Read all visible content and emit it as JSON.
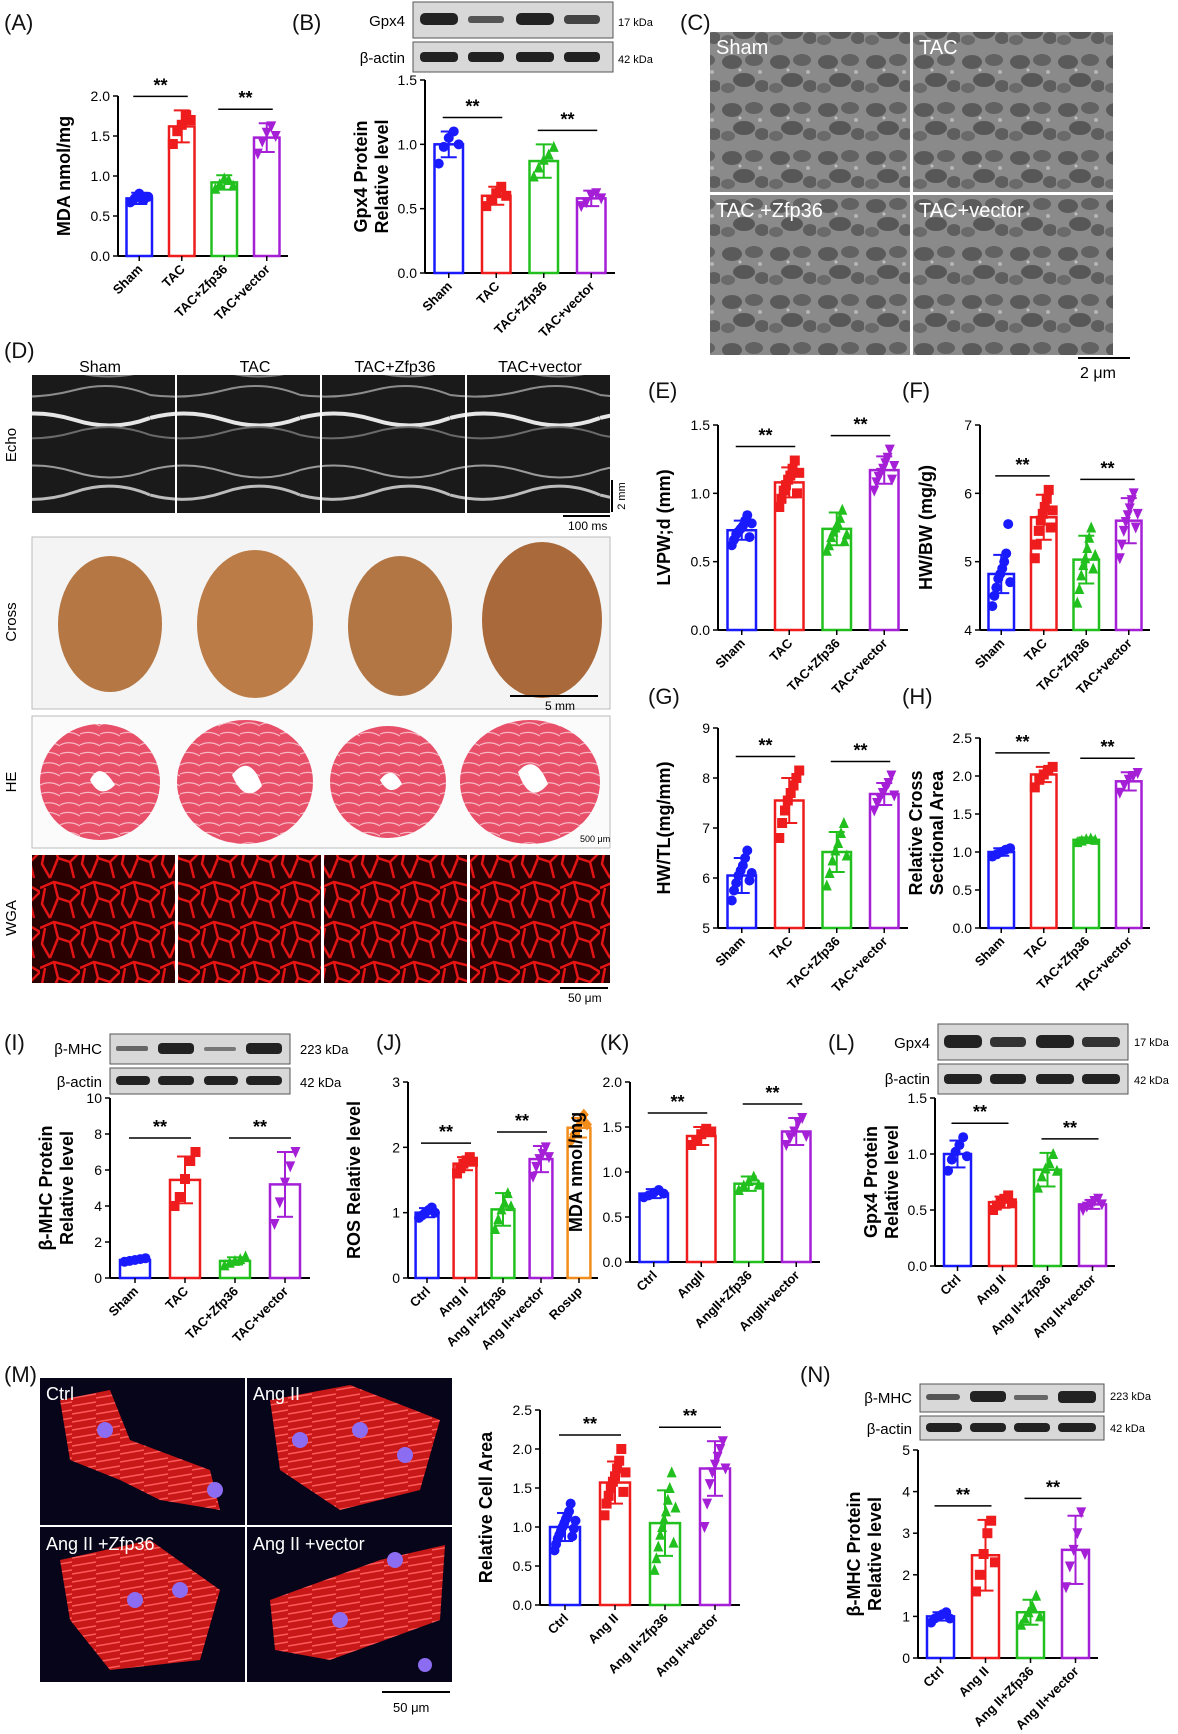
{
  "colors": {
    "Sham": "#1a1aff",
    "TAC": "#ee1c1c",
    "Zfp": "#22c01f",
    "vec": "#a41fd6",
    "Rosup": "#f28c1b"
  },
  "panels": {
    "A": {
      "label": "(A)"
    },
    "B": {
      "label": "(B)"
    },
    "C": {
      "label": "(C)"
    },
    "D": {
      "label": "(D)"
    },
    "E": {
      "label": "(E)"
    },
    "F": {
      "label": "(F)"
    },
    "G": {
      "label": "(G)"
    },
    "H": {
      "label": "(H)"
    },
    "I": {
      "label": "(I)"
    },
    "J": {
      "label": "(J)"
    },
    "K": {
      "label": "(K)"
    },
    "L": {
      "label": "(L)"
    },
    "M": {
      "label": "(M)"
    },
    "N": {
      "label": "(N)"
    }
  },
  "images": {
    "C": {
      "labels": [
        "Sham",
        "TAC",
        "TAC +Zfp36",
        "TAC+vector"
      ],
      "scale": "2 μm"
    },
    "D": {
      "groups": [
        "Sham",
        "TAC",
        "TAC+Zfp36",
        "TAC+vector"
      ],
      "row_labels": [
        "Echo",
        "Cross",
        "HE",
        "WGA"
      ],
      "echo_scale_v": "2 mm",
      "echo_scale_h": "100 ms",
      "cross_scale": "5 mm",
      "he_scale": "500 μm",
      "wga_scale": "50 μm"
    },
    "M": {
      "labels": [
        "Ctrl",
        "Ang II",
        "Ang II +Zfp36",
        "Ang II +vector"
      ],
      "scale": "50 μm"
    }
  },
  "blots": {
    "B": {
      "rows": [
        "Gpx4",
        "β-actin"
      ],
      "kda": [
        "17 kDa",
        "42 kDa"
      ]
    },
    "I": {
      "rows": [
        "β-MHC",
        "β-actin"
      ],
      "kda": [
        "223 kDa",
        "42 kDa"
      ]
    },
    "L": {
      "rows": [
        "Gpx4",
        "β-actin"
      ],
      "kda": [
        "17 kDa",
        "42 kDa"
      ]
    },
    "N": {
      "rows": [
        "β-MHC",
        "β-actin"
      ],
      "kda": [
        "223 kDa",
        "42 kDa"
      ]
    }
  },
  "chart_data": [
    {
      "id": "A",
      "type": "bar",
      "ylabel": "MDA nmol/mg",
      "ylim": [
        0,
        2.0
      ],
      "yticks": [
        "0.0",
        "0.5",
        "1.0",
        "1.5",
        "2.0"
      ],
      "categories": [
        "Sham",
        "TAC",
        "TAC+Zfp36",
        "TAC+vector"
      ],
      "colors": [
        "Sham",
        "TAC",
        "Zfp",
        "vec"
      ],
      "values": [
        0.72,
        1.62,
        0.92,
        1.48
      ],
      "errors": [
        0.07,
        0.2,
        0.09,
        0.18
      ],
      "points": [
        [
          0.67,
          0.72,
          0.78,
          0.7,
          0.74
        ],
        [
          1.4,
          1.56,
          1.64,
          1.76,
          1.7
        ],
        [
          0.84,
          0.9,
          0.97,
          0.95,
          0.88
        ],
        [
          1.28,
          1.43,
          1.54,
          1.62,
          1.5
        ]
      ],
      "markers": [
        "circle",
        "square",
        "triangle",
        "down"
      ],
      "sig": [
        [
          0,
          1,
          "**"
        ],
        [
          2,
          3,
          "**"
        ]
      ]
    },
    {
      "id": "B",
      "type": "bar",
      "ylabel": "Gpx4 Protein\nRelative level",
      "ylim": [
        0,
        1.5
      ],
      "yticks": [
        "0.0",
        "0.5",
        "1.0",
        "1.5"
      ],
      "categories": [
        "Sham",
        "TAC",
        "TAC+Zfp36",
        "TAC+vector"
      ],
      "colors": [
        "Sham",
        "TAC",
        "Zfp",
        "vec"
      ],
      "values": [
        1.0,
        0.6,
        0.87,
        0.58
      ],
      "errors": [
        0.1,
        0.07,
        0.13,
        0.06
      ],
      "points": [
        [
          0.85,
          0.98,
          1.05,
          1.1,
          1.0
        ],
        [
          0.52,
          0.57,
          0.62,
          0.67,
          0.6
        ],
        [
          0.75,
          0.82,
          0.88,
          0.92,
          0.98
        ],
        [
          0.52,
          0.55,
          0.6,
          0.62,
          0.58
        ]
      ],
      "markers": [
        "circle",
        "square",
        "triangle",
        "down"
      ],
      "sig": [
        [
          0,
          1,
          "**"
        ],
        [
          2,
          3,
          "**"
        ]
      ]
    },
    {
      "id": "E",
      "type": "bar",
      "ylabel": "LVPW;d (mm)",
      "ylim": [
        0,
        1.5
      ],
      "yticks": [
        "0.0",
        "0.5",
        "1.0",
        "1.5"
      ],
      "categories": [
        "Sham",
        "TAC",
        "TAC+Zfp36",
        "TAC+vector"
      ],
      "colors": [
        "Sham",
        "TAC",
        "Zfp",
        "vec"
      ],
      "values": [
        0.73,
        1.08,
        0.74,
        1.17
      ],
      "errors": [
        0.07,
        0.11,
        0.12,
        0.1
      ],
      "points": [
        [
          0.62,
          0.66,
          0.7,
          0.72,
          0.74,
          0.76,
          0.8,
          0.84,
          0.68,
          0.78
        ],
        [
          0.9,
          0.96,
          1.02,
          1.06,
          1.1,
          1.13,
          1.18,
          1.24,
          1.0,
          1.15
        ],
        [
          0.58,
          0.62,
          0.68,
          0.72,
          0.75,
          0.78,
          0.82,
          0.88,
          0.65,
          0.7
        ],
        [
          1.02,
          1.08,
          1.12,
          1.15,
          1.18,
          1.22,
          1.26,
          1.32,
          1.1,
          1.2
        ]
      ],
      "markers": [
        "circle",
        "square",
        "triangle",
        "down"
      ],
      "sig": [
        [
          0,
          1,
          "**"
        ],
        [
          2,
          3,
          "**"
        ]
      ]
    },
    {
      "id": "F",
      "type": "bar",
      "ylabel": "HW/BW (mg/g)",
      "ylim": [
        4,
        7
      ],
      "yticks": [
        "4",
        "5",
        "6",
        "7"
      ],
      "categories": [
        "Sham",
        "TAC",
        "TAC+Zfp36",
        "TAC+vector"
      ],
      "colors": [
        "Sham",
        "TAC",
        "Zfp",
        "vec"
      ],
      "values": [
        4.82,
        5.65,
        5.03,
        5.6
      ],
      "errors": [
        0.28,
        0.33,
        0.35,
        0.33
      ],
      "points": [
        [
          4.35,
          4.5,
          4.62,
          4.75,
          4.82,
          4.9,
          5.0,
          5.12,
          5.55,
          4.7
        ],
        [
          5.05,
          5.25,
          5.45,
          5.6,
          5.7,
          5.8,
          5.92,
          6.05,
          5.5,
          5.75
        ],
        [
          4.4,
          4.6,
          4.8,
          4.95,
          5.05,
          5.2,
          5.35,
          5.5,
          4.9,
          5.1
        ],
        [
          5.05,
          5.25,
          5.45,
          5.58,
          5.68,
          5.78,
          5.9,
          6.0,
          5.5,
          5.7
        ]
      ],
      "markers": [
        "circle",
        "square",
        "triangle",
        "down"
      ],
      "sig": [
        [
          0,
          1,
          "**"
        ],
        [
          2,
          3,
          "**"
        ]
      ]
    },
    {
      "id": "G",
      "type": "bar",
      "ylabel": "HW/TL(mg/mm)",
      "ylim": [
        5,
        9
      ],
      "yticks": [
        "5",
        "6",
        "7",
        "8",
        "9"
      ],
      "categories": [
        "Sham",
        "TAC",
        "TAC+Zfp36",
        "TAC+vector"
      ],
      "colors": [
        "Sham",
        "TAC",
        "Zfp",
        "vec"
      ],
      "values": [
        6.05,
        7.55,
        6.52,
        7.68
      ],
      "errors": [
        0.35,
        0.45,
        0.4,
        0.22
      ],
      "points": [
        [
          5.55,
          5.75,
          5.9,
          6.05,
          6.15,
          6.25,
          6.4,
          6.55,
          5.95,
          6.1
        ],
        [
          6.8,
          7.1,
          7.35,
          7.55,
          7.7,
          7.85,
          8.0,
          8.15
        ],
        [
          5.85,
          6.1,
          6.35,
          6.55,
          6.7,
          6.9,
          7.1,
          6.45
        ],
        [
          7.35,
          7.5,
          7.6,
          7.7,
          7.8,
          7.9,
          8.05,
          7.65
        ]
      ],
      "markers": [
        "circle",
        "square",
        "triangle",
        "down"
      ],
      "sig": [
        [
          0,
          1,
          "**"
        ],
        [
          2,
          3,
          "**"
        ]
      ]
    },
    {
      "id": "H",
      "type": "bar",
      "ylabel": "Relative Cross\nSectional Area",
      "ylim": [
        0,
        2.5
      ],
      "yticks": [
        "0.0",
        "0.5",
        "1.0",
        "1.5",
        "2.0",
        "2.5"
      ],
      "categories": [
        "Sham",
        "TAC",
        "TAC+Zfp36",
        "TAC+vector"
      ],
      "colors": [
        "Sham",
        "TAC",
        "Zfp",
        "vec"
      ],
      "values": [
        1.0,
        2.02,
        1.16,
        1.93
      ],
      "errors": [
        0.05,
        0.1,
        0.03,
        0.12
      ],
      "points": [
        [
          0.94,
          0.97,
          1.0,
          1.03,
          1.05
        ],
        [
          1.85,
          1.95,
          2.02,
          2.08,
          2.12
        ],
        [
          1.13,
          1.15,
          1.17,
          1.18,
          1.16
        ],
        [
          1.78,
          1.88,
          1.95,
          2.0,
          2.04
        ]
      ],
      "markers": [
        "circle",
        "square",
        "triangle",
        "down"
      ],
      "sig": [
        [
          0,
          1,
          "**"
        ],
        [
          2,
          3,
          "**"
        ]
      ]
    },
    {
      "id": "I",
      "type": "bar",
      "ylabel": "β-MHC Protein\nRelative level",
      "ylim": [
        0,
        10
      ],
      "yticks": [
        "0",
        "2",
        "4",
        "6",
        "8",
        "10"
      ],
      "categories": [
        "Sham",
        "TAC",
        "TAC+Zfp36",
        "TAC+vector"
      ],
      "colors": [
        "Sham",
        "TAC",
        "Zfp",
        "vec"
      ],
      "values": [
        1.0,
        5.45,
        0.95,
        5.2
      ],
      "errors": [
        0.1,
        1.3,
        0.2,
        1.8
      ],
      "points": [
        [
          0.9,
          0.95,
          1.0,
          1.05,
          1.1
        ],
        [
          4.0,
          4.5,
          5.5,
          6.5,
          7.0
        ],
        [
          0.7,
          0.85,
          0.95,
          1.05,
          1.2
        ],
        [
          3.0,
          4.2,
          5.3,
          6.2,
          7.0
        ]
      ],
      "markers": [
        "circle",
        "square",
        "triangle",
        "down"
      ],
      "sig": [
        [
          0,
          1,
          "**"
        ],
        [
          2,
          3,
          "**"
        ]
      ]
    },
    {
      "id": "J",
      "type": "bar",
      "ylabel": "ROS Relative level",
      "ylim": [
        0,
        3
      ],
      "yticks": [
        "0",
        "1",
        "2",
        "3"
      ],
      "categories": [
        "Ctrl",
        "Ang II",
        "Ang II+Zfp36",
        "Ang II+vector",
        "Rosup"
      ],
      "colors": [
        "Sham",
        "TAC",
        "Zfp",
        "vec",
        "Rosup"
      ],
      "values": [
        1.0,
        1.75,
        1.05,
        1.82,
        2.3
      ],
      "errors": [
        0.07,
        0.1,
        0.25,
        0.2,
        0.15
      ],
      "points": [
        [
          0.92,
          0.96,
          1.0,
          1.04,
          1.08,
          1.0
        ],
        [
          1.6,
          1.68,
          1.75,
          1.8,
          1.85,
          1.78
        ],
        [
          0.75,
          0.9,
          1.05,
          1.15,
          1.3,
          1.1
        ],
        [
          1.55,
          1.7,
          1.82,
          1.9,
          2.0,
          1.85
        ],
        [
          2.1,
          2.2,
          2.3,
          2.4,
          2.5,
          2.35
        ]
      ],
      "markers": [
        "circle",
        "square",
        "triangle",
        "down",
        "diamond"
      ],
      "sig": [
        [
          0,
          1,
          "**"
        ],
        [
          2,
          3,
          "**"
        ]
      ]
    },
    {
      "id": "K",
      "type": "bar",
      "ylabel": "MDA nmol/mg",
      "ylim": [
        0,
        2.0
      ],
      "yticks": [
        "0.0",
        "0.5",
        "1.0",
        "1.5",
        "2.0"
      ],
      "categories": [
        "Ctrl",
        "AngII",
        "AngII+Zfp36",
        "AngII+vector"
      ],
      "colors": [
        "Sham",
        "TAC",
        "Zfp",
        "vec"
      ],
      "values": [
        0.76,
        1.4,
        0.87,
        1.45
      ],
      "errors": [
        0.05,
        0.1,
        0.08,
        0.15
      ],
      "points": [
        [
          0.72,
          0.74,
          0.77,
          0.8,
          0.76
        ],
        [
          1.3,
          1.35,
          1.42,
          1.48,
          1.45
        ],
        [
          0.8,
          0.85,
          0.9,
          0.95,
          0.86
        ],
        [
          1.3,
          1.38,
          1.45,
          1.55,
          1.6,
          1.4
        ]
      ],
      "markers": [
        "circle",
        "square",
        "triangle",
        "down"
      ],
      "sig": [
        [
          0,
          1,
          "**"
        ],
        [
          2,
          3,
          "**"
        ]
      ]
    },
    {
      "id": "L",
      "type": "bar",
      "ylabel": "Gpx4 Protein\nRelative level",
      "ylim": [
        0,
        1.5
      ],
      "yticks": [
        "0.0",
        "0.5",
        "1.0",
        "1.5"
      ],
      "categories": [
        "Ctrl",
        "Ang II",
        "Ang II+Zfp36",
        "Ang II+vector"
      ],
      "colors": [
        "Sham",
        "TAC",
        "Zfp",
        "vec"
      ],
      "values": [
        1.0,
        0.57,
        0.86,
        0.55
      ],
      "errors": [
        0.12,
        0.05,
        0.15,
        0.04
      ],
      "points": [
        [
          0.85,
          0.95,
          1.02,
          1.08,
          1.15,
          0.98
        ],
        [
          0.5,
          0.54,
          0.57,
          0.6,
          0.63,
          0.56
        ],
        [
          0.7,
          0.8,
          0.87,
          0.92,
          1.0,
          0.85
        ],
        [
          0.5,
          0.53,
          0.55,
          0.58,
          0.6,
          0.55
        ]
      ],
      "markers": [
        "circle",
        "square",
        "triangle",
        "down"
      ],
      "sig": [
        [
          0,
          1,
          "**"
        ],
        [
          2,
          3,
          "**"
        ]
      ]
    },
    {
      "id": "M",
      "type": "bar",
      "ylabel": "Relative Cell  Area",
      "ylim": [
        0,
        2.5
      ],
      "yticks": [
        "0.0",
        "0.5",
        "1.0",
        "1.5",
        "2.0",
        "2.5"
      ],
      "categories": [
        "Ctrl",
        "Ang II",
        "Ang II+Zfp36",
        "Ang II+vector"
      ],
      "colors": [
        "Sham",
        "TAC",
        "Zfp",
        "vec"
      ],
      "values": [
        1.0,
        1.57,
        1.05,
        1.75
      ],
      "errors": [
        0.18,
        0.27,
        0.42,
        0.35
      ],
      "points": [
        [
          0.7,
          0.78,
          0.85,
          0.9,
          0.95,
          1.0,
          1.05,
          1.1,
          1.15,
          1.2,
          1.3,
          0.88,
          0.98,
          1.08
        ],
        [
          1.15,
          1.3,
          1.4,
          1.5,
          1.58,
          1.65,
          1.75,
          1.85,
          2.0,
          1.45,
          1.7
        ],
        [
          0.45,
          0.6,
          0.75,
          0.9,
          1.0,
          1.1,
          1.2,
          1.35,
          1.5,
          1.7,
          0.8,
          1.25
        ],
        [
          1.0,
          1.3,
          1.55,
          1.7,
          1.8,
          1.9,
          2.0,
          2.1,
          1.75
        ]
      ],
      "markers": [
        "circle",
        "square",
        "triangle",
        "down"
      ],
      "sig": [
        [
          0,
          1,
          "**"
        ],
        [
          2,
          3,
          "**"
        ]
      ]
    },
    {
      "id": "N",
      "type": "bar",
      "ylabel": "β-MHC Protein\nRelative level",
      "ylim": [
        0,
        5
      ],
      "yticks": [
        "0",
        "1",
        "2",
        "3",
        "4",
        "5"
      ],
      "categories": [
        "Ctrl",
        "Ang II",
        "Ang II+Zfp36",
        "Ang II+vector"
      ],
      "colors": [
        "Sham",
        "TAC",
        "Zfp",
        "vec"
      ],
      "values": [
        1.0,
        2.47,
        1.1,
        2.6
      ],
      "errors": [
        0.1,
        0.85,
        0.3,
        0.82
      ],
      "points": [
        [
          0.85,
          0.95,
          1.0,
          1.05,
          1.1,
          0.95
        ],
        [
          1.6,
          2.0,
          2.5,
          3.0,
          3.3,
          2.3
        ],
        [
          0.8,
          0.95,
          1.1,
          1.25,
          1.5,
          1.0
        ],
        [
          1.7,
          2.2,
          2.6,
          3.0,
          3.5,
          2.5
        ]
      ],
      "markers": [
        "circle",
        "square",
        "triangle",
        "down"
      ],
      "sig": [
        [
          0,
          1,
          "**"
        ],
        [
          2,
          3,
          "**"
        ]
      ]
    }
  ]
}
